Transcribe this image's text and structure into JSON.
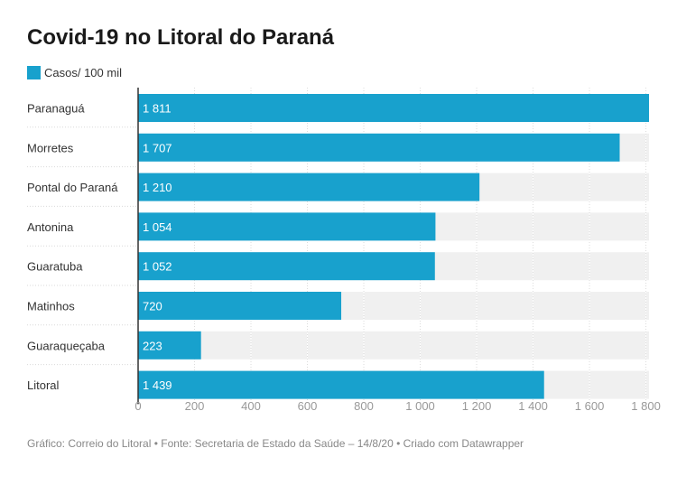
{
  "chart_data": {
    "type": "bar",
    "orientation": "horizontal",
    "title": "Covid-19 no Litoral do Paraná",
    "categories": [
      "Paranaguá",
      "Morretes",
      "Pontal do Paraná",
      "Antonina",
      "Guaratuba",
      "Matinhos",
      "Guaraqueçaba",
      "Litoral"
    ],
    "series": [
      {
        "name": "Casos/ 100 mil",
        "values": [
          1811,
          1707,
          1210,
          1054,
          1052,
          720,
          223,
          1439
        ],
        "value_labels": [
          "1 811",
          "1 707",
          "1 210",
          "1 054",
          "1 052",
          "720",
          "223",
          "1 439"
        ]
      }
    ],
    "xlim": [
      0,
      1811
    ],
    "xticks": [
      0,
      200,
      400,
      600,
      800,
      1000,
      1200,
      1400,
      1600,
      1800
    ],
    "xtick_labels": [
      "0",
      "200",
      "400",
      "600",
      "800",
      "1 000",
      "1 200",
      "1 400",
      "1 600",
      "1 800"
    ],
    "grid": true,
    "legend_position": "top-left",
    "colors": {
      "bar": "#18a1cd",
      "track": "#f0f0f0",
      "value_label": "#ffffff"
    }
  },
  "footer": "Gráfico: Correio do Litoral • Fonte: Secretaria de Estado da Saúde – 14/8/20 • Criado com Datawrapper"
}
